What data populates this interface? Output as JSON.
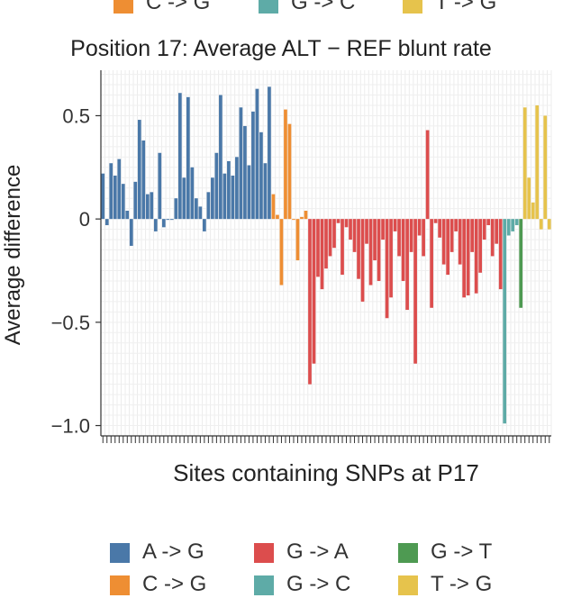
{
  "chart_data": {
    "type": "bar",
    "title": "Position 17: Average ALT − REF blunt rate",
    "xlabel": "Sites containing SNPs at P17",
    "ylabel": "Average difference",
    "ylim": [
      -1.05,
      0.72
    ],
    "yticks": [
      0.5,
      0,
      -0.5,
      -1.0
    ],
    "ytick_labels": [
      "0.5",
      "0",
      "−0.5",
      "−1.0"
    ],
    "grid": true,
    "legend_position": "bottom",
    "series": [
      {
        "name": "A -> G",
        "color": "#4a78a8",
        "values": [
          0.22,
          -0.03,
          0.27,
          0.21,
          0.29,
          0.17,
          0.04,
          -0.13,
          0.18,
          0.48,
          0.38,
          0.12,
          0.13,
          -0.06,
          0.32,
          -0.04,
          0.0,
          0.0,
          0.1,
          0.61,
          0.2,
          0.59,
          0.25,
          0.1,
          0.06,
          -0.06,
          0.13,
          0.2,
          0.32,
          0.6,
          0.22,
          0.28,
          0.21,
          0.3,
          0.54,
          0.45,
          0.26,
          0.52,
          0.63,
          0.42,
          0.27,
          0.64
        ]
      },
      {
        "name": "C -> G",
        "color": "#ee8e33",
        "values": [
          0.12,
          0.02,
          -0.32,
          0.53,
          0.46,
          0.0,
          -0.2,
          0.01,
          0.04
        ]
      },
      {
        "name": "G -> A",
        "color": "#dc4d4d",
        "values": [
          -0.8,
          -0.7,
          -0.28,
          -0.34,
          -0.24,
          -0.18,
          -0.14,
          -0.02,
          -0.27,
          -0.04,
          -0.1,
          -0.16,
          -0.29,
          -0.4,
          -0.12,
          -0.32,
          -0.2,
          -0.3,
          -0.1,
          -0.48,
          -0.38,
          -0.06,
          -0.18,
          -0.3,
          -0.44,
          -0.16,
          -0.7,
          -0.08,
          -0.18,
          0.43,
          -0.43,
          -0.02,
          -0.09,
          -0.22,
          -0.27,
          -0.16,
          -0.06,
          -0.22,
          -0.38,
          -0.37,
          -0.16,
          -0.36,
          -0.26,
          -0.1,
          -0.03,
          -0.18,
          -0.12,
          -0.34
        ]
      },
      {
        "name": "G -> C",
        "color": "#5eaba7",
        "values": [
          -0.99,
          -0.08,
          -0.06,
          -0.03
        ]
      },
      {
        "name": "G -> T",
        "color": "#4e9a52",
        "values": [
          -0.43
        ]
      },
      {
        "name": "T -> G",
        "color": "#e6c34c",
        "values": [
          0.54,
          0.2,
          0.08,
          0.55,
          -0.05,
          0.5,
          -0.05
        ]
      }
    ]
  },
  "legend": {
    "top": [
      {
        "label": "C -> G",
        "color": "#ee8e33"
      },
      {
        "label": "G -> C",
        "color": "#5eaba7"
      },
      {
        "label": "T -> G",
        "color": "#e6c34c"
      }
    ],
    "bottom_row1": [
      {
        "label": "A -> G",
        "color": "#4a78a8"
      },
      {
        "label": "G -> A",
        "color": "#dc4d4d"
      },
      {
        "label": "G -> T",
        "color": "#4e9a52"
      }
    ],
    "bottom_row2": [
      {
        "label": "C -> G",
        "color": "#ee8e33"
      },
      {
        "label": "G -> C",
        "color": "#5eaba7"
      },
      {
        "label": "T -> G",
        "color": "#e6c34c"
      }
    ]
  }
}
